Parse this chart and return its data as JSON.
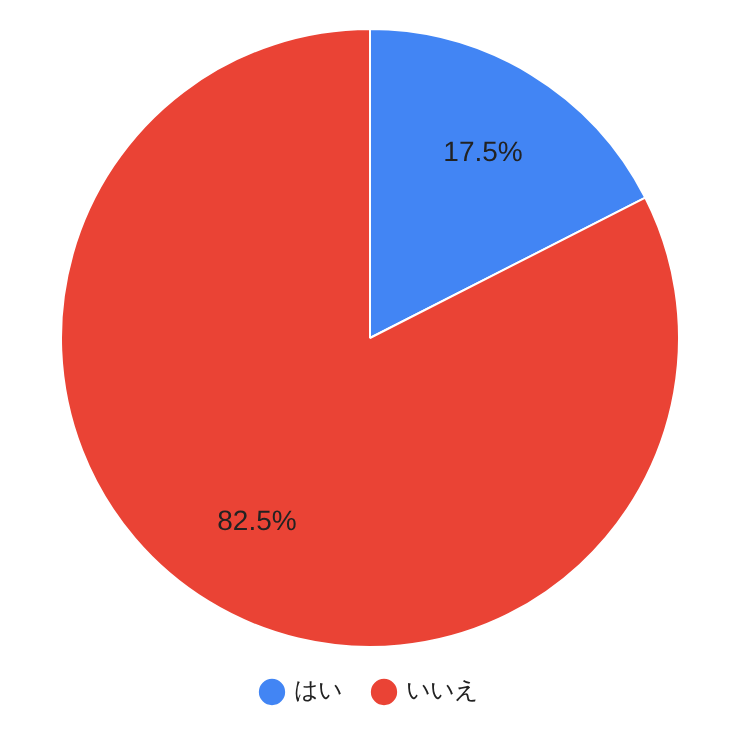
{
  "chart_data": {
    "type": "pie",
    "categories": [
      "はい",
      "いいえ"
    ],
    "values": [
      17.5,
      82.5
    ],
    "colors": [
      "#4285f4",
      "#ea4335"
    ],
    "value_labels": [
      "17.5%",
      "82.5%"
    ],
    "legend": "bottom"
  }
}
